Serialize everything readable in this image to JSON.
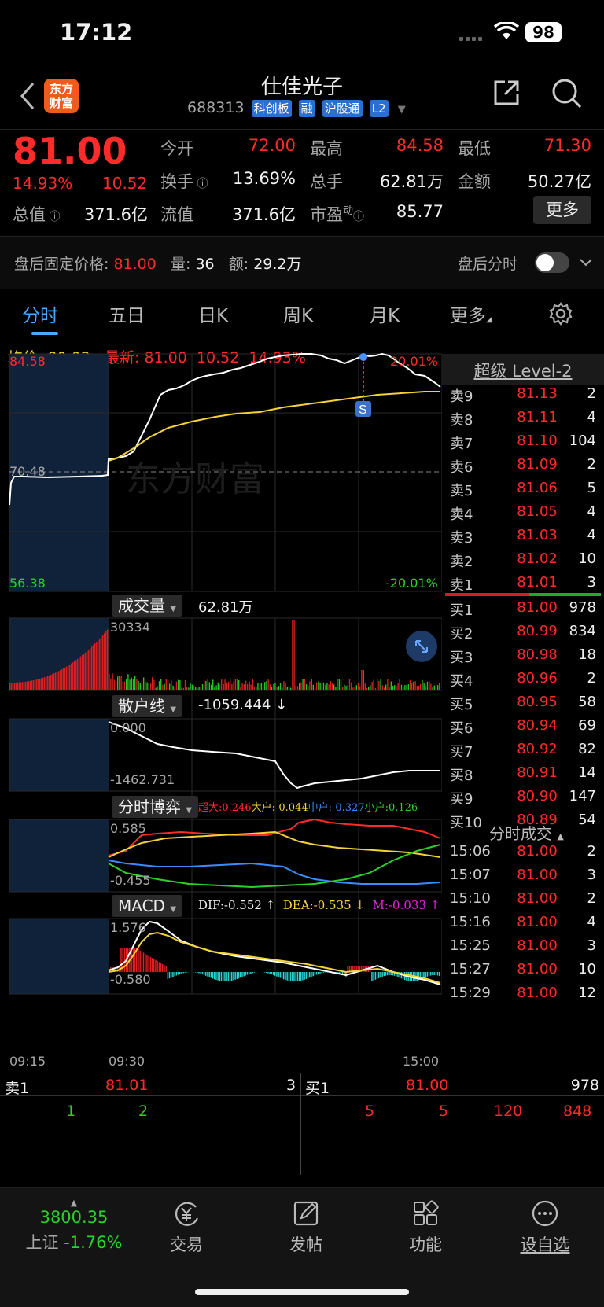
{
  "status": {
    "time": "17:12",
    "battery": "98"
  },
  "header": {
    "logo_text": "东方\n财富",
    "stock_name": "仕佳光子",
    "stock_code": "688313",
    "tags": [
      "科创板",
      "融",
      "沪股通",
      "L2"
    ]
  },
  "quote": {
    "price": "81.00",
    "change_pct": "14.93%",
    "change_amt": "10.52",
    "open_label": "今开",
    "open": "72.00",
    "high_label": "最高",
    "high": "84.58",
    "low_label": "最低",
    "low": "71.30",
    "turnover_label": "换手",
    "turnover": "13.69%",
    "volume_label": "总手",
    "volume": "62.81万",
    "amount_label": "金额",
    "amount": "50.27亿",
    "mktcap_label": "总值",
    "mktcap": "371.6亿",
    "float_label": "流值",
    "float": "371.6亿",
    "pe_label": "市盈",
    "pe_sup": "动",
    "pe": "85.77",
    "more_label": "更多"
  },
  "after_hours": {
    "fixed_label": "盘后固定价格:",
    "fixed_price": "81.00",
    "vol_label": "量:",
    "vol": "36",
    "amt_label": "额:",
    "amt": "29.2万",
    "toggle_label": "盘后分时"
  },
  "tabs": [
    "分时",
    "五日",
    "日K",
    "周K",
    "月K",
    "更多"
  ],
  "chart": {
    "avg_label": "均价:",
    "avg": "80.03",
    "latest_label": "最新:",
    "latest": "81.00",
    "latest_chg": "10.52",
    "latest_pct": "14.93%",
    "y_top": "84.58",
    "y_mid": "70.48",
    "y_bot": "56.38",
    "pct_top": "20.01%",
    "pct_bot": "-20.01%",
    "watermark": "东方财富",
    "marker": "S",
    "vol_label": "成交量",
    "vol_total": "62.81万",
    "vol_max": "30334",
    "retail_label": "散户线",
    "retail_value": "-1059.444 ↓",
    "retail_top": "0.000",
    "retail_bot": "-1462.731",
    "game_label": "分时博弈",
    "game_legend": [
      "超大:0.246",
      "大户:-0.044",
      "中户:-0.327",
      "小户:0.126"
    ],
    "game_top": "0.585",
    "game_bot": "-0.455",
    "macd_label": "MACD",
    "macd_dif": "DIF:-0.552 ↑",
    "macd_dea": "DEA:-0.535 ↓",
    "macd_m": "M:-0.033 ↑",
    "macd_top": "1.576",
    "macd_bot": "-0.580",
    "time_start": "09:15",
    "time_open": "09:30",
    "time_end": "15:00"
  },
  "orderbook": {
    "title": "超级 Level-2",
    "asks": [
      {
        "label": "卖9",
        "price": "81.13",
        "vol": "2"
      },
      {
        "label": "卖8",
        "price": "81.11",
        "vol": "4"
      },
      {
        "label": "卖7",
        "price": "81.10",
        "vol": "104"
      },
      {
        "label": "卖6",
        "price": "81.09",
        "vol": "2"
      },
      {
        "label": "卖5",
        "price": "81.06",
        "vol": "5"
      },
      {
        "label": "卖4",
        "price": "81.05",
        "vol": "4"
      },
      {
        "label": "卖3",
        "price": "81.03",
        "vol": "4"
      },
      {
        "label": "卖2",
        "price": "81.02",
        "vol": "10"
      },
      {
        "label": "卖1",
        "price": "81.01",
        "vol": "3"
      }
    ],
    "bids": [
      {
        "label": "买1",
        "price": "81.00",
        "vol": "978"
      },
      {
        "label": "买2",
        "price": "80.99",
        "vol": "834"
      },
      {
        "label": "买3",
        "price": "80.98",
        "vol": "18"
      },
      {
        "label": "买4",
        "price": "80.96",
        "vol": "2"
      },
      {
        "label": "买5",
        "price": "80.95",
        "vol": "58"
      },
      {
        "label": "买6",
        "price": "80.94",
        "vol": "69"
      },
      {
        "label": "买7",
        "price": "80.92",
        "vol": "82"
      },
      {
        "label": "买8",
        "price": "80.91",
        "vol": "14"
      },
      {
        "label": "买9",
        "price": "80.90",
        "vol": "147"
      },
      {
        "label": "买10",
        "price": "80.89",
        "vol": "54"
      }
    ],
    "trades_title": "分时成交",
    "trades": [
      {
        "time": "15:06",
        "price": "81.00",
        "vol": "2"
      },
      {
        "time": "15:07",
        "price": "81.00",
        "vol": "3"
      },
      {
        "time": "15:10",
        "price": "81.00",
        "vol": "2"
      },
      {
        "time": "15:16",
        "price": "81.00",
        "vol": "4"
      },
      {
        "time": "15:25",
        "price": "81.00",
        "vol": "3"
      },
      {
        "time": "15:27",
        "price": "81.00",
        "vol": "10"
      },
      {
        "time": "15:29",
        "price": "81.00",
        "vol": "12"
      }
    ]
  },
  "trade_bar": {
    "sell_label": "卖1",
    "sell_price": "81.01",
    "sell_vol": "3",
    "buy_label": "买1",
    "buy_price": "81.00",
    "buy_vol": "978",
    "sell_queue": [
      "1",
      "2"
    ],
    "buy_queue": [
      "5",
      "5",
      "120",
      "848"
    ]
  },
  "bottom_nav": {
    "index_value": "3800.35",
    "index_name": "上证",
    "index_pct": "-1.76%",
    "items": [
      "交易",
      "发帖",
      "功能",
      "设自选"
    ]
  }
}
